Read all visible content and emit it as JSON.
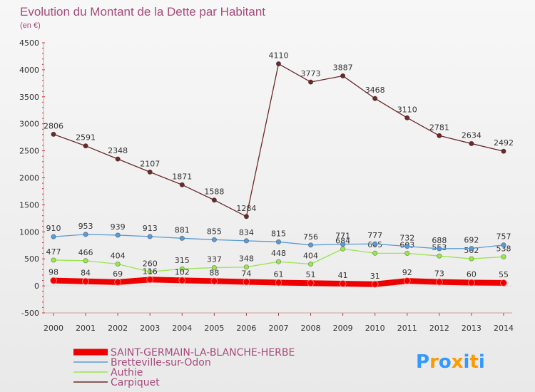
{
  "chart_data": {
    "type": "line",
    "title": "Evolution du Montant de la Dette par Habitant",
    "subtitle": "(en €)",
    "xlabel": "",
    "ylabel": "",
    "x": [
      "2000",
      "2001",
      "2002",
      "2003",
      "2004",
      "2005",
      "2006",
      "2007",
      "2008",
      "2009",
      "2010",
      "2011",
      "2012",
      "2013",
      "2014"
    ],
    "yticks": [
      "-500",
      "0",
      "500",
      "1000",
      "1500",
      "2000",
      "2500",
      "3000",
      "3500",
      "4000",
      "4500"
    ],
    "ylim": [
      -500,
      4500
    ],
    "grid": false,
    "legend_position": "bottom-left",
    "series": [
      {
        "name": "SAINT-GERMAIN-LA-BLANCHE-HERBE",
        "color": "#ee0000",
        "values": [
          98,
          84,
          69,
          116,
          102,
          88,
          74,
          61,
          51,
          41,
          31,
          92,
          73,
          60,
          55
        ]
      },
      {
        "name": "Bretteville-sur-Odon",
        "color": "#5b9bd5",
        "values": [
          910,
          953,
          939,
          913,
          881,
          855,
          834,
          815,
          756,
          771,
          777,
          732,
          688,
          692,
          757
        ]
      },
      {
        "name": "Authie",
        "color": "#99e64d",
        "values": [
          477,
          466,
          404,
          260,
          315,
          337,
          348,
          448,
          404,
          684,
          605,
          603,
          553,
          502,
          538
        ]
      },
      {
        "name": "Carpiquet",
        "color": "#6b2a2a",
        "values": [
          2806,
          2591,
          2348,
          2107,
          1871,
          1588,
          1284,
          4110,
          3773,
          3887,
          3468,
          3110,
          2781,
          2634,
          2492
        ]
      }
    ]
  },
  "brand": {
    "text": "Proxiti",
    "letters": [
      "P",
      "r",
      "o",
      "x",
      "i",
      "t",
      "i"
    ],
    "colors": [
      "#3399ff",
      "#ff9900",
      "#3399ff",
      "#ff9900",
      "#3399ff",
      "#ff9900",
      "#3399ff"
    ]
  }
}
